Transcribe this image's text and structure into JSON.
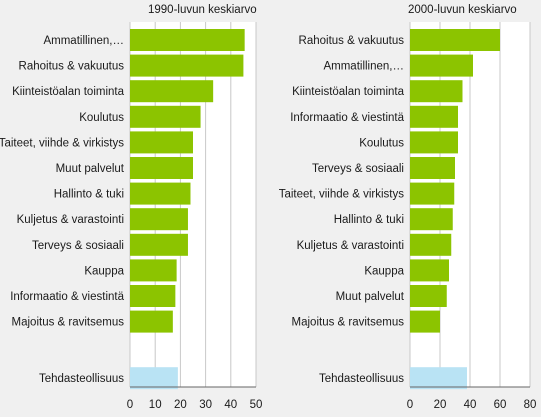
{
  "chart_data": [
    {
      "type": "bar",
      "orientation": "horizontal",
      "title": "1990-luvun keskiarvo",
      "categories": [
        "Ammatillinen,…",
        "Rahoitus & vakuutus",
        "Kiinteistöalan toiminta",
        "Koulutus",
        "Taiteet, viihde & virkistys",
        "Muut palvelut",
        "Hallinto & tuki",
        "Kuljetus & varastointi",
        "Terveys & sosiaali",
        "Kauppa",
        "Informaatio & viestintä",
        "Majoitus &  ravitsemus",
        "Tehdasteollisuus"
      ],
      "values": [
        45.5,
        45,
        33,
        28,
        25,
        25,
        24,
        23,
        23,
        18.5,
        18,
        17,
        19
      ],
      "highlight_category": "Tehdasteollisuus",
      "xlim": [
        0,
        50
      ],
      "xticks": [
        0,
        10,
        20,
        30,
        40,
        50
      ],
      "grid": true,
      "xlabel": "",
      "ylabel": ""
    },
    {
      "type": "bar",
      "orientation": "horizontal",
      "title": "2000-luvun keskiarvo",
      "categories": [
        "Rahoitus & vakuutus",
        "Ammatillinen,…",
        "Kiinteistöalan toiminta",
        "Informaatio & viestintä",
        "Koulutus",
        "Terveys & sosiaali",
        "Taiteet, viihde & virkistys",
        "Hallinto & tuki",
        "Kuljetus & varastointi",
        "Kauppa",
        "Muut palvelut",
        "Majoitus & ravitsemus",
        "Tehdasteollisuus"
      ],
      "values": [
        60,
        42,
        35,
        32,
        32,
        30,
        29.5,
        28.5,
        27.5,
        26,
        24.5,
        20,
        38
      ],
      "highlight_category": "Tehdasteollisuus",
      "xlim": [
        0,
        80
      ],
      "xticks": [
        0,
        20,
        40,
        60,
        80
      ],
      "grid": true,
      "xlabel": "",
      "ylabel": ""
    }
  ],
  "colors": {
    "bar": "#8cc400",
    "highlight_bar": "#b9e3f4",
    "background": "#f0f0f0",
    "plot_background": "#ffffff",
    "grid": "#c8c8c8",
    "axis": "#666666"
  }
}
